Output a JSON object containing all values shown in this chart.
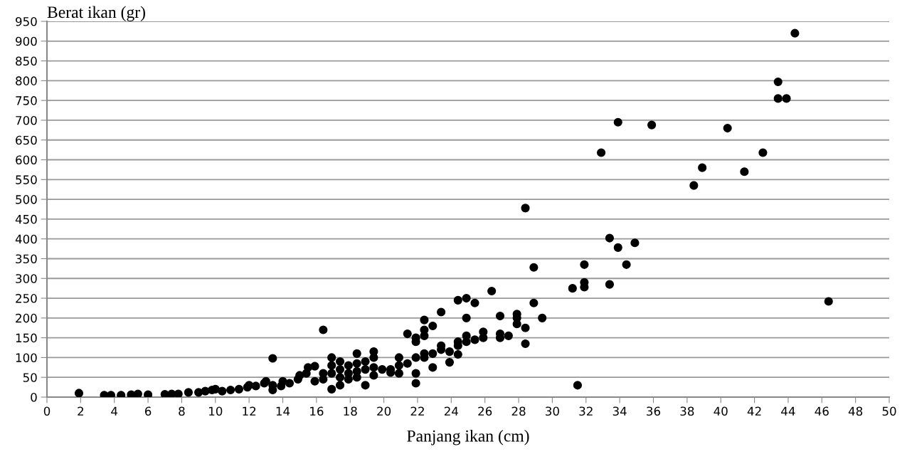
{
  "chart_data": {
    "type": "scatter",
    "xlabel": "Panjang ikan (cm)",
    "ylabel": "Berat ikan (gr)",
    "xlim": [
      0,
      50
    ],
    "ylim": [
      0,
      950
    ],
    "xticks": [
      0,
      2,
      4,
      6,
      8,
      10,
      12,
      14,
      16,
      18,
      20,
      22,
      24,
      26,
      28,
      30,
      32,
      34,
      36,
      38,
      40,
      42,
      44,
      46,
      48,
      50
    ],
    "yticks": [
      0,
      50,
      100,
      150,
      200,
      250,
      300,
      350,
      400,
      450,
      500,
      550,
      600,
      650,
      700,
      750,
      800,
      850,
      900,
      950
    ],
    "grid": "y",
    "marker": "circle",
    "legend": false,
    "series": [
      {
        "color": "#000000",
        "x": [
          1.9,
          3.4,
          3.8,
          4.4,
          5,
          5.4,
          6,
          7,
          7.4,
          7.8,
          8.4,
          9,
          9.4,
          9.8,
          10,
          10.4,
          10.9,
          11.4,
          11.9,
          12,
          12.4,
          12.9,
          13,
          13.4,
          13.4,
          13.4,
          13.9,
          14,
          14.4,
          14.9,
          15,
          15.4,
          15.5,
          15.9,
          15.9,
          16.4,
          16.4,
          16.4,
          16.9,
          16.9,
          16.9,
          16.9,
          17.4,
          17.4,
          17.4,
          17.4,
          17.9,
          17.9,
          17.9,
          18.4,
          18.4,
          18.4,
          18.4,
          18.9,
          18.9,
          18.9,
          19.4,
          19.4,
          19.4,
          19.4,
          19.9,
          20.4,
          20.4,
          20.9,
          20.9,
          20.9,
          21.4,
          21.4,
          21.9,
          21.9,
          21.9,
          21.9,
          21.9,
          22.4,
          22.4,
          22.4,
          22.4,
          22.4,
          22.9,
          22.9,
          22.9,
          23.4,
          23.4,
          23.4,
          23.9,
          23.9,
          24.4,
          24.4,
          24.4,
          24.4,
          24.9,
          24.9,
          24.9,
          24.9,
          25.4,
          25.4,
          25.9,
          25.9,
          26.4,
          26.9,
          26.9,
          26.9,
          27.4,
          27.9,
          27.9,
          27.9,
          28.4,
          28.4,
          28.4,
          28.9,
          28.9,
          29.4,
          31.2,
          31.5,
          31.9,
          31.9,
          31.9,
          32.9,
          33.4,
          33.4,
          33.9,
          33.9,
          34.4,
          34.9,
          35.9,
          38.4,
          38.9,
          40.4,
          41.4,
          42.5,
          43.4,
          43.4,
          43.9,
          44.4,
          46.4
        ],
        "values": [
          10,
          5,
          5,
          5,
          6,
          8,
          6,
          7,
          8,
          8,
          12,
          12,
          15,
          18,
          20,
          15,
          18,
          20,
          25,
          30,
          28,
          35,
          40,
          30,
          98,
          18,
          28,
          40,
          35,
          45,
          55,
          60,
          75,
          78,
          40,
          170,
          60,
          45,
          100,
          80,
          60,
          20,
          90,
          70,
          50,
          30,
          80,
          60,
          45,
          110,
          85,
          65,
          50,
          90,
          70,
          30,
          115,
          100,
          75,
          55,
          70,
          70,
          62,
          100,
          80,
          60,
          160,
          85,
          150,
          140,
          100,
          60,
          35,
          195,
          170,
          155,
          110,
          100,
          180,
          110,
          75,
          215,
          130,
          120,
          115,
          88,
          245,
          140,
          130,
          108,
          250,
          200,
          155,
          140,
          238,
          145,
          165,
          150,
          268,
          205,
          160,
          150,
          155,
          210,
          200,
          185,
          478,
          175,
          135,
          328,
          238,
          200,
          275,
          30,
          335,
          290,
          278,
          618,
          402,
          285,
          695,
          378,
          335,
          390,
          688,
          535,
          580,
          680,
          570,
          618,
          797,
          755,
          755,
          920,
          242
        ]
      }
    ]
  }
}
